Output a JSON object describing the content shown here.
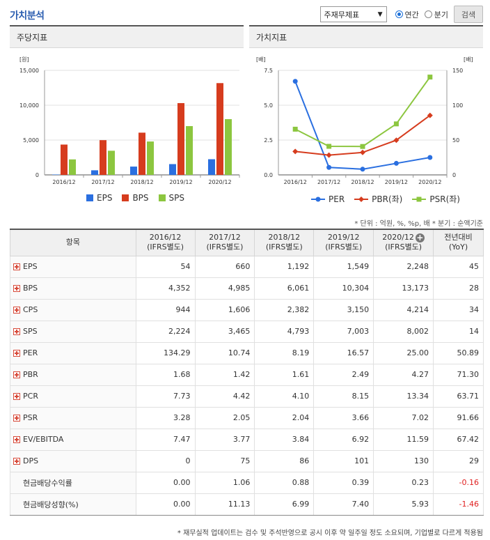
{
  "title": "가치분석",
  "controls": {
    "select_value": "주재무제표",
    "radio_annual": "연간",
    "radio_quarter": "분기",
    "search_button": "검색"
  },
  "left_panel": {
    "title": "주당지표"
  },
  "right_panel": {
    "title": "가치지표"
  },
  "chart_data": [
    {
      "type": "bar",
      "ylabel": "[원]",
      "categories": [
        "2016/12",
        "2017/12",
        "2018/12",
        "2019/12",
        "2020/12"
      ],
      "ylim": [
        0,
        15000
      ],
      "yticks": [
        "15,000",
        "10,000",
        "5,000",
        "0"
      ],
      "series": [
        {
          "name": "EPS",
          "color": "#2a6fe0",
          "values": [
            54,
            660,
            1192,
            1549,
            2248
          ]
        },
        {
          "name": "BPS",
          "color": "#d63c1e",
          "values": [
            4352,
            4985,
            6061,
            10304,
            13173
          ]
        },
        {
          "name": "SPS",
          "color": "#8cc63f",
          "values": [
            2224,
            3465,
            4793,
            7003,
            8002
          ]
        }
      ]
    },
    {
      "type": "line",
      "ylabel_left": "[배]",
      "ylabel_right": "[배]",
      "categories": [
        "2016/12",
        "2017/12",
        "2018/12",
        "2019/12",
        "2020/12"
      ],
      "ylim_left": [
        0,
        7.5
      ],
      "ylim_right": [
        0,
        150
      ],
      "yticks_left": [
        "7.5",
        "5.0",
        "2.5",
        "0.0"
      ],
      "yticks_right": [
        "150",
        "100",
        "50",
        "0"
      ],
      "series": [
        {
          "name": "PER",
          "axis": "right",
          "color": "#2a6fe0",
          "marker": "circle",
          "values": [
            134.29,
            10.74,
            8.19,
            16.57,
            25.0
          ]
        },
        {
          "name": "PBR(좌)",
          "axis": "left",
          "color": "#d63c1e",
          "marker": "diamond",
          "values": [
            1.68,
            1.42,
            1.61,
            2.49,
            4.27
          ]
        },
        {
          "name": "PSR(좌)",
          "axis": "left",
          "color": "#8cc63f",
          "marker": "square",
          "values": [
            3.28,
            2.05,
            2.04,
            3.66,
            7.02
          ]
        }
      ]
    }
  ],
  "unit_note": "* 단위 : 억원, %, %p, 배    * 분기 : 순액기준",
  "table": {
    "headers": [
      {
        "l1": "항목",
        "l2": ""
      },
      {
        "l1": "2016/12",
        "l2": "(IFRS별도)"
      },
      {
        "l1": "2017/12",
        "l2": "(IFRS별도)"
      },
      {
        "l1": "2018/12",
        "l2": "(IFRS별도)"
      },
      {
        "l1": "2019/12",
        "l2": "(IFRS별도)"
      },
      {
        "l1": "2020/12",
        "l2": "(IFRS별도)"
      },
      {
        "l1": "전년대비",
        "l2": "(YoY)"
      }
    ],
    "rows": [
      {
        "label": "EPS",
        "expand": true,
        "v": [
          "54",
          "660",
          "1,192",
          "1,549",
          "2,248",
          "45"
        ]
      },
      {
        "label": "BPS",
        "expand": true,
        "v": [
          "4,352",
          "4,985",
          "6,061",
          "10,304",
          "13,173",
          "28"
        ]
      },
      {
        "label": "CPS",
        "expand": true,
        "v": [
          "944",
          "1,606",
          "2,382",
          "3,150",
          "4,214",
          "34"
        ]
      },
      {
        "label": "SPS",
        "expand": true,
        "v": [
          "2,224",
          "3,465",
          "4,793",
          "7,003",
          "8,002",
          "14"
        ]
      },
      {
        "label": "PER",
        "expand": true,
        "v": [
          "134.29",
          "10.74",
          "8.19",
          "16.57",
          "25.00",
          "50.89"
        ]
      },
      {
        "label": "PBR",
        "expand": true,
        "v": [
          "1.68",
          "1.42",
          "1.61",
          "2.49",
          "4.27",
          "71.30"
        ]
      },
      {
        "label": "PCR",
        "expand": true,
        "v": [
          "7.73",
          "4.42",
          "4.10",
          "8.15",
          "13.34",
          "63.71"
        ]
      },
      {
        "label": "PSR",
        "expand": true,
        "v": [
          "3.28",
          "2.05",
          "2.04",
          "3.66",
          "7.02",
          "91.66"
        ]
      },
      {
        "label": "EV/EBITDA",
        "expand": true,
        "v": [
          "7.47",
          "3.77",
          "3.84",
          "6.92",
          "11.59",
          "67.42"
        ]
      },
      {
        "label": "DPS",
        "expand": true,
        "v": [
          "0",
          "75",
          "86",
          "101",
          "130",
          "29"
        ]
      },
      {
        "label": "현금배당수익률",
        "expand": false,
        "v": [
          "0.00",
          "1.06",
          "0.88",
          "0.39",
          "0.23",
          "-0.16"
        ]
      },
      {
        "label": "현금배당성향(%)",
        "expand": false,
        "v": [
          "0.00",
          "11.13",
          "6.99",
          "7.40",
          "5.93",
          "-1.46"
        ]
      }
    ]
  },
  "footer_note": "* 재무실적 업데이트는 검수 및 주석반영으로 공시 이후 약 일주일 정도 소요되며, 기업별로 다르게 적용됨"
}
